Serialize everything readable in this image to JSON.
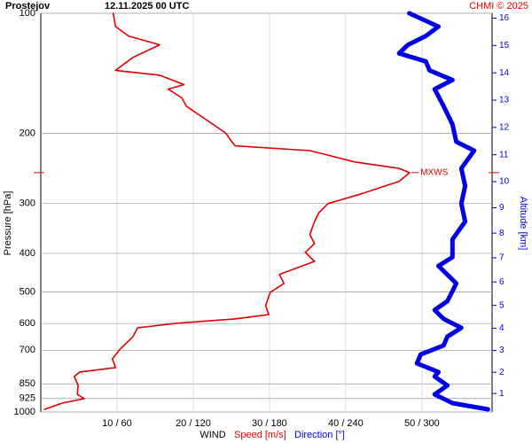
{
  "chart_data": {
    "type": "profile",
    "title": "Prostejov",
    "subtitle": "12.11.2025 00 UTC",
    "credit": "CHMI © 2025",
    "ylabel": "Pressure [hPa]",
    "y2label": "Altitude [km]",
    "xlabel": "WIND",
    "annotation": "MXWS",
    "ylim": [
      1000,
      100
    ],
    "log_y": true,
    "yticks": [
      100,
      200,
      300,
      400,
      500,
      600,
      700,
      850,
      925,
      1000
    ],
    "xlim": [
      0,
      59.2
    ],
    "x2lim": [
      0,
      355.2
    ],
    "xticks": [
      {
        "value": 10,
        "label": "10 / 60"
      },
      {
        "value": 20,
        "label": "20 / 120"
      },
      {
        "value": 30,
        "label": "30 / 180"
      },
      {
        "value": 40,
        "label": "40 / 240"
      },
      {
        "value": 50,
        "label": "50 / 300"
      }
    ],
    "y2ticks": [
      1,
      2,
      3,
      4,
      5,
      6,
      7,
      8,
      9,
      10,
      11,
      12,
      13,
      14,
      15,
      16
    ],
    "grid": true,
    "series": [
      {
        "name": "Speed [m/s]",
        "color": "#e00000",
        "axis": "x",
        "y": [
          985,
          950,
          926,
          903,
          858,
          815,
          794,
          774,
          736,
          699,
          647,
          615,
          599,
          584,
          570,
          541,
          501,
          476,
          452,
          419,
          398,
          378,
          359,
          333,
          316,
          300,
          285,
          264,
          251,
          245,
          236,
          221,
          215,
          208,
          200,
          190,
          180,
          171,
          163,
          155,
          151,
          143,
          139,
          129,
          120,
          114,
          108,
          100
        ],
        "values": [
          0.5,
          2.8,
          5.7,
          4.8,
          4.9,
          4.4,
          5.1,
          9.8,
          9.4,
          10.3,
          12.1,
          12.7,
          17.9,
          25.5,
          29.9,
          29.5,
          30.1,
          31.9,
          31.3,
          35.9,
          34.7,
          35.9,
          35.3,
          35.9,
          36.5,
          37.7,
          41.7,
          47.0,
          48.4,
          47.0,
          41.2,
          35.3,
          25.5,
          24.9,
          24.3,
          22.6,
          20.8,
          19.1,
          18.5,
          16.7,
          18.8,
          15.6,
          9.8,
          12.1,
          15.6,
          11.5,
          9.8,
          9.5
        ]
      },
      {
        "name": "Direction [°]",
        "color": "#0000e6",
        "axis": "x2",
        "y": [
          985,
          950,
          903,
          858,
          815,
          794,
          755,
          717,
          681,
          647,
          615,
          584,
          555,
          527,
          476,
          430,
          409,
          369,
          333,
          300,
          271,
          245,
          221,
          210,
          190,
          171,
          155,
          147,
          139,
          132,
          126,
          120,
          114,
          108,
          100
        ],
        "values": [
          352,
          324,
          310,
          320,
          310,
          313,
          296,
          299,
          317,
          320,
          331,
          317,
          310,
          320,
          327,
          313,
          324,
          324,
          334,
          331,
          334,
          331,
          341,
          327,
          324,
          317,
          310,
          324,
          306,
          303,
          282,
          289,
          303,
          313,
          290
        ]
      }
    ]
  }
}
